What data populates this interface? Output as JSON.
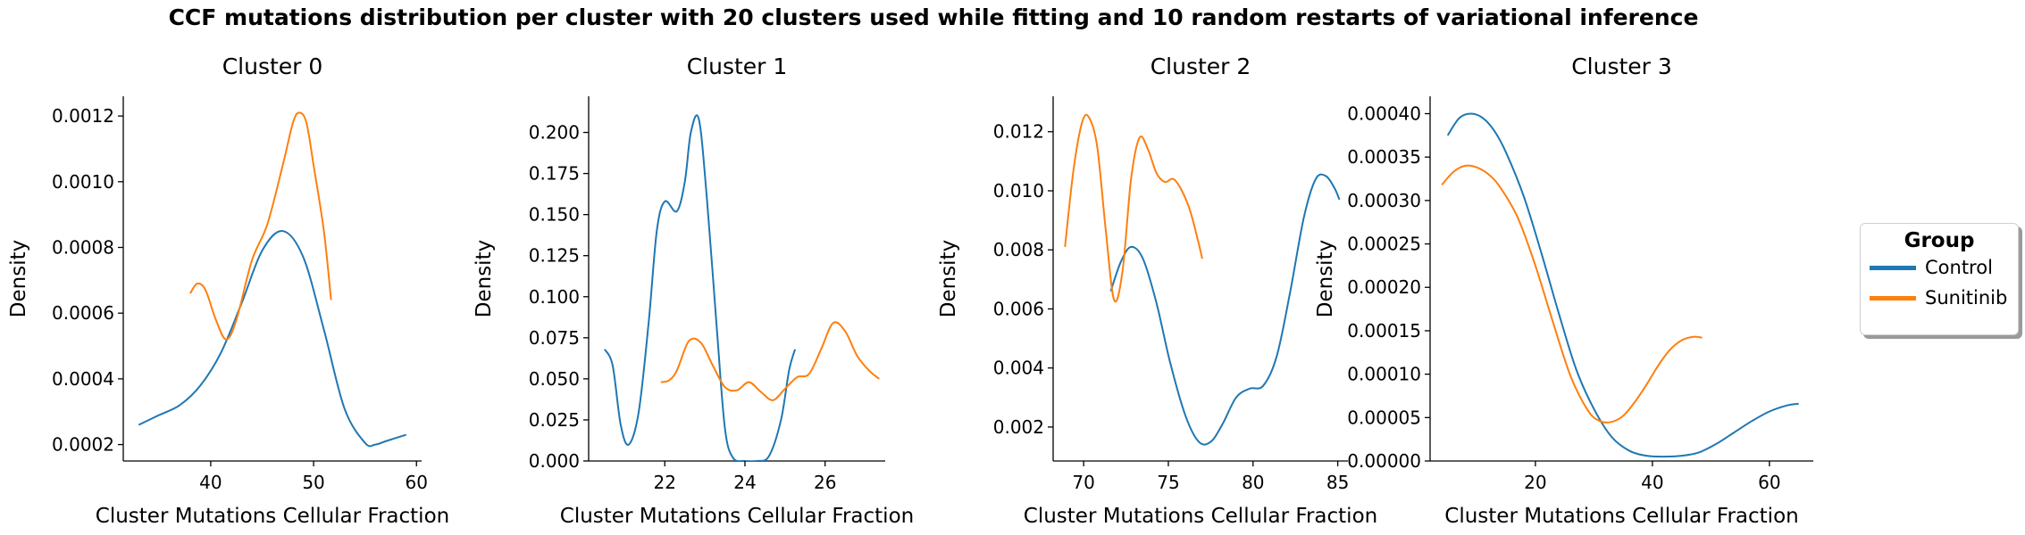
{
  "suptitle": "CCF mutations distribution per cluster with 20 clusters used while fitting and 10 random restarts of variational inference",
  "legend": {
    "title": "Group",
    "placement": "right",
    "entries": [
      {
        "label": "Control",
        "color": "#1f77b4"
      },
      {
        "label": "Sunitinib",
        "color": "#ff7f0e"
      }
    ]
  },
  "chart_data": [
    {
      "type": "line",
      "title": "Cluster 0",
      "xlabel": "Cluster Mutations Cellular Fraction",
      "ylabel": "Density",
      "xlim": [
        31.5,
        60.5
      ],
      "ylim": [
        0.00015,
        0.00126
      ],
      "xticks": [
        40,
        50,
        60
      ],
      "xtick_labels": [
        "40",
        "50",
        "60"
      ],
      "yticks": [
        0.0002,
        0.0004,
        0.0006,
        0.0008,
        0.001,
        0.0012
      ],
      "ytick_labels": [
        "0.0002",
        "0.0004",
        "0.0006",
        "0.0008",
        "0.0010",
        "0.0012"
      ],
      "series": [
        {
          "name": "Control",
          "color": "#1f77b4",
          "x": [
            33,
            35,
            37,
            39,
            41,
            43,
            45,
            47,
            49,
            51,
            53,
            55,
            56,
            57,
            59
          ],
          "y": [
            0.00026,
            0.00029,
            0.00032,
            0.00038,
            0.00048,
            0.00063,
            0.00079,
            0.00085,
            0.00077,
            0.00055,
            0.00031,
            0.000205,
            0.0002,
            0.00021,
            0.00023
          ]
        },
        {
          "name": "Sunitinib",
          "color": "#ff7f0e",
          "x": [
            38,
            38.7,
            39.5,
            40.5,
            41.5,
            42.5,
            44,
            45.5,
            47,
            48,
            48.6,
            49.3,
            50,
            51,
            51.7
          ],
          "y": [
            0.00066,
            0.00069,
            0.00067,
            0.00058,
            0.00052,
            0.00058,
            0.00076,
            0.00087,
            0.00105,
            0.00118,
            0.00121,
            0.00118,
            0.00105,
            0.00085,
            0.00064
          ]
        }
      ]
    },
    {
      "type": "line",
      "title": "Cluster 1",
      "xlabel": "Cluster Mutations Cellular Fraction",
      "ylabel": "Density",
      "xlim": [
        20.1,
        27.5
      ],
      "ylim": [
        0,
        0.222
      ],
      "xticks": [
        22,
        24,
        26
      ],
      "xtick_labels": [
        "22",
        "24",
        "26"
      ],
      "yticks": [
        0,
        0.025,
        0.05,
        0.075,
        0.1,
        0.125,
        0.15,
        0.175,
        0.2
      ],
      "ytick_labels": [
        "0.000",
        "0.025",
        "0.050",
        "0.075",
        "0.100",
        "0.125",
        "0.150",
        "0.175",
        "0.200"
      ],
      "series": [
        {
          "name": "Control",
          "color": "#1f77b4",
          "x": [
            20.5,
            20.7,
            20.9,
            21.1,
            21.35,
            21.6,
            21.8,
            22.0,
            22.3,
            22.5,
            22.65,
            22.85,
            23.05,
            23.3,
            23.5,
            23.7,
            24.0,
            24.3,
            24.6,
            24.9,
            25.1,
            25.25
          ],
          "y": [
            0.068,
            0.058,
            0.022,
            0.01,
            0.03,
            0.085,
            0.14,
            0.158,
            0.152,
            0.17,
            0.2,
            0.208,
            0.16,
            0.08,
            0.02,
            0.002,
            0.0,
            0.0,
            0.003,
            0.025,
            0.055,
            0.068
          ]
        },
        {
          "name": "Sunitinib",
          "color": "#ff7f0e",
          "x": [
            21.9,
            22.1,
            22.3,
            22.6,
            22.9,
            23.2,
            23.5,
            23.8,
            24.1,
            24.4,
            24.7,
            25.0,
            25.3,
            25.6,
            25.9,
            26.2,
            26.5,
            26.8,
            27.1,
            27.35
          ],
          "y": [
            0.048,
            0.049,
            0.055,
            0.073,
            0.072,
            0.058,
            0.045,
            0.043,
            0.048,
            0.042,
            0.037,
            0.044,
            0.051,
            0.053,
            0.068,
            0.084,
            0.079,
            0.064,
            0.055,
            0.05
          ]
        }
      ]
    },
    {
      "type": "line",
      "title": "Cluster 2",
      "xlabel": "Cluster Mutations Cellular Fraction",
      "ylabel": "Density",
      "xlim": [
        68.2,
        85.6
      ],
      "ylim": [
        0.00085,
        0.0132
      ],
      "xticks": [
        70,
        75,
        80,
        85
      ],
      "xtick_labels": [
        "70",
        "75",
        "80",
        "85"
      ],
      "yticks": [
        0.002,
        0.004,
        0.006,
        0.008,
        0.01,
        0.012
      ],
      "ytick_labels": [
        "0.002",
        "0.004",
        "0.006",
        "0.008",
        "0.010",
        "0.012"
      ],
      "series": [
        {
          "name": "Control",
          "color": "#1f77b4",
          "x": [
            71.6,
            72.2,
            72.8,
            73.5,
            74.3,
            75.1,
            76.0,
            76.8,
            77.5,
            78.2,
            79.0,
            79.8,
            80.6,
            81.4,
            82.2,
            83.0,
            83.7,
            84.3,
            84.8,
            85.1
          ],
          "y": [
            0.0066,
            0.0076,
            0.0081,
            0.0077,
            0.0062,
            0.0042,
            0.0024,
            0.0015,
            0.0015,
            0.0021,
            0.003,
            0.0033,
            0.0034,
            0.0044,
            0.0066,
            0.0091,
            0.0104,
            0.0105,
            0.0101,
            0.0097
          ]
        },
        {
          "name": "Sunitinib",
          "color": "#ff7f0e",
          "x": [
            68.9,
            69.4,
            69.9,
            70.3,
            70.8,
            71.3,
            71.8,
            72.3,
            72.8,
            73.3,
            73.8,
            74.3,
            74.8,
            75.3,
            75.8,
            76.3,
            76.8,
            77.0
          ],
          "y": [
            0.0081,
            0.0107,
            0.0123,
            0.0125,
            0.0115,
            0.0087,
            0.0063,
            0.0073,
            0.0104,
            0.0118,
            0.0114,
            0.0106,
            0.0103,
            0.0104,
            0.01,
            0.0093,
            0.0082,
            0.0077
          ]
        }
      ]
    },
    {
      "type": "line",
      "title": "Cluster 3",
      "xlabel": "Cluster Mutations Cellular Fraction",
      "ylabel": "Density",
      "xlim": [
        2,
        67.5
      ],
      "ylim": [
        0,
        0.00042
      ],
      "xticks": [
        20,
        40,
        60
      ],
      "xtick_labels": [
        "20",
        "40",
        "60"
      ],
      "yticks": [
        0,
        5e-05,
        0.0001,
        0.00015,
        0.0002,
        0.00025,
        0.0003,
        0.00035,
        0.0004
      ],
      "ytick_labels": [
        "0.00000",
        "0.00005",
        "0.00010",
        "0.00015",
        "0.00020",
        "0.00025",
        "0.00030",
        "0.00035",
        "0.00040"
      ],
      "series": [
        {
          "name": "Control",
          "color": "#1f77b4",
          "x": [
            5,
            7,
            9,
            11,
            13,
            15,
            18,
            21,
            24,
            27,
            30,
            33,
            36,
            39,
            42,
            45,
            48,
            51,
            54,
            57,
            60,
            63,
            65
          ],
          "y": [
            0.000375,
            0.000395,
            0.0004,
            0.000395,
            0.00038,
            0.000355,
            0.000305,
            0.00024,
            0.00017,
            0.000105,
            6e-05,
            2.8e-05,
            1.2e-05,
            6e-06,
            5e-06,
            6e-06,
            1e-05,
            2e-05,
            3.3e-05,
            4.6e-05,
            5.7e-05,
            6.4e-05,
            6.6e-05
          ]
        },
        {
          "name": "Sunitinib",
          "color": "#ff7f0e",
          "x": [
            4,
            6,
            8,
            10,
            12,
            14,
            17,
            20,
            23,
            26,
            29,
            31,
            33,
            35,
            37,
            39,
            41,
            43,
            45,
            47,
            48.5
          ],
          "y": [
            0.000318,
            0.000333,
            0.00034,
            0.000338,
            0.00033,
            0.000315,
            0.00028,
            0.000225,
            0.00016,
            9.8e-05,
            5.8e-05,
            4.6e-05,
            4.5e-05,
            5.2e-05,
            6.8e-05,
            8.8e-05,
            0.00011,
            0.000128,
            0.000139,
            0.000143,
            0.000142
          ]
        }
      ]
    }
  ]
}
